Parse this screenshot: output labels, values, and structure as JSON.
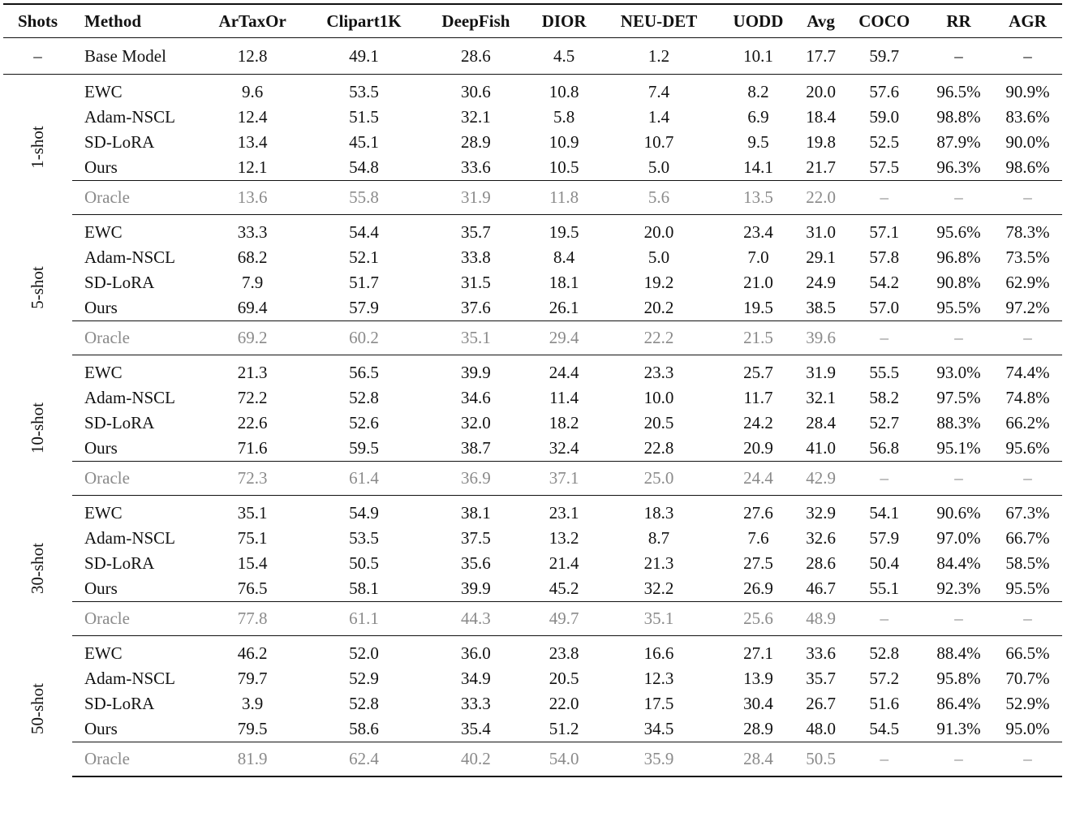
{
  "columns": [
    "Shots",
    "Method",
    "ArTaxOr",
    "Clipart1K",
    "DeepFish",
    "DIOR",
    "NEU-DET",
    "UODD",
    "Avg",
    "COCO",
    "RR",
    "AGR"
  ],
  "base": {
    "shots": "–",
    "method": "Base Model",
    "values": [
      "12.8",
      "49.1",
      "28.6",
      "4.5",
      "1.2",
      "10.1",
      "17.7",
      "59.7",
      "–",
      "–"
    ]
  },
  "groups": [
    {
      "shots": "1-shot",
      "rows": [
        {
          "method": "EWC",
          "values": [
            "9.6",
            "53.5",
            "30.6",
            "10.8",
            "7.4",
            "8.2",
            "20.0",
            "57.6",
            "96.5%",
            "90.9%"
          ]
        },
        {
          "method": "Adam-NSCL",
          "values": [
            "12.4",
            "51.5",
            "32.1",
            "5.8",
            "1.4",
            "6.9",
            "18.4",
            "59.0",
            "98.8%",
            "83.6%"
          ]
        },
        {
          "method": "SD-LoRA",
          "values": [
            "13.4",
            "45.1",
            "28.9",
            "10.9",
            "10.7",
            "9.5",
            "19.8",
            "52.5",
            "87.9%",
            "90.0%"
          ]
        },
        {
          "method": "Ours",
          "values": [
            "12.1",
            "54.8",
            "33.6",
            "10.5",
            "5.0",
            "14.1",
            "21.7",
            "57.5",
            "96.3%",
            "98.6%"
          ]
        }
      ],
      "oracle": {
        "method": "Oracle",
        "values": [
          "13.6",
          "55.8",
          "31.9",
          "11.8",
          "5.6",
          "13.5",
          "22.0",
          "–",
          "–",
          "–"
        ]
      }
    },
    {
      "shots": "5-shot",
      "rows": [
        {
          "method": "EWC",
          "values": [
            "33.3",
            "54.4",
            "35.7",
            "19.5",
            "20.0",
            "23.4",
            "31.0",
            "57.1",
            "95.6%",
            "78.3%"
          ]
        },
        {
          "method": "Adam-NSCL",
          "values": [
            "68.2",
            "52.1",
            "33.8",
            "8.4",
            "5.0",
            "7.0",
            "29.1",
            "57.8",
            "96.8%",
            "73.5%"
          ]
        },
        {
          "method": "SD-LoRA",
          "values": [
            "7.9",
            "51.7",
            "31.5",
            "18.1",
            "19.2",
            "21.0",
            "24.9",
            "54.2",
            "90.8%",
            "62.9%"
          ]
        },
        {
          "method": "Ours",
          "values": [
            "69.4",
            "57.9",
            "37.6",
            "26.1",
            "20.2",
            "19.5",
            "38.5",
            "57.0",
            "95.5%",
            "97.2%"
          ]
        }
      ],
      "oracle": {
        "method": "Oracle",
        "values": [
          "69.2",
          "60.2",
          "35.1",
          "29.4",
          "22.2",
          "21.5",
          "39.6",
          "–",
          "–",
          "–"
        ]
      }
    },
    {
      "shots": "10-shot",
      "rows": [
        {
          "method": "EWC",
          "values": [
            "21.3",
            "56.5",
            "39.9",
            "24.4",
            "23.3",
            "25.7",
            "31.9",
            "55.5",
            "93.0%",
            "74.4%"
          ]
        },
        {
          "method": "Adam-NSCL",
          "values": [
            "72.2",
            "52.8",
            "34.6",
            "11.4",
            "10.0",
            "11.7",
            "32.1",
            "58.2",
            "97.5%",
            "74.8%"
          ]
        },
        {
          "method": "SD-LoRA",
          "values": [
            "22.6",
            "52.6",
            "32.0",
            "18.2",
            "20.5",
            "24.2",
            "28.4",
            "52.7",
            "88.3%",
            "66.2%"
          ]
        },
        {
          "method": "Ours",
          "values": [
            "71.6",
            "59.5",
            "38.7",
            "32.4",
            "22.8",
            "20.9",
            "41.0",
            "56.8",
            "95.1%",
            "95.6%"
          ]
        }
      ],
      "oracle": {
        "method": "Oracle",
        "values": [
          "72.3",
          "61.4",
          "36.9",
          "37.1",
          "25.0",
          "24.4",
          "42.9",
          "–",
          "–",
          "–"
        ]
      }
    },
    {
      "shots": "30-shot",
      "rows": [
        {
          "method": "EWC",
          "values": [
            "35.1",
            "54.9",
            "38.1",
            "23.1",
            "18.3",
            "27.6",
            "32.9",
            "54.1",
            "90.6%",
            "67.3%"
          ]
        },
        {
          "method": "Adam-NSCL",
          "values": [
            "75.1",
            "53.5",
            "37.5",
            "13.2",
            "8.7",
            "7.6",
            "32.6",
            "57.9",
            "97.0%",
            "66.7%"
          ]
        },
        {
          "method": "SD-LoRA",
          "values": [
            "15.4",
            "50.5",
            "35.6",
            "21.4",
            "21.3",
            "27.5",
            "28.6",
            "50.4",
            "84.4%",
            "58.5%"
          ]
        },
        {
          "method": "Ours",
          "values": [
            "76.5",
            "58.1",
            "39.9",
            "45.2",
            "32.2",
            "26.9",
            "46.7",
            "55.1",
            "92.3%",
            "95.5%"
          ]
        }
      ],
      "oracle": {
        "method": "Oracle",
        "values": [
          "77.8",
          "61.1",
          "44.3",
          "49.7",
          "35.1",
          "25.6",
          "48.9",
          "–",
          "–",
          "–"
        ]
      }
    },
    {
      "shots": "50-shot",
      "rows": [
        {
          "method": "EWC",
          "values": [
            "46.2",
            "52.0",
            "36.0",
            "23.8",
            "16.6",
            "27.1",
            "33.6",
            "52.8",
            "88.4%",
            "66.5%"
          ]
        },
        {
          "method": "Adam-NSCL",
          "values": [
            "79.7",
            "52.9",
            "34.9",
            "20.5",
            "12.3",
            "13.9",
            "35.7",
            "57.2",
            "95.8%",
            "70.7%"
          ]
        },
        {
          "method": "SD-LoRA",
          "values": [
            "3.9",
            "52.8",
            "33.3",
            "22.0",
            "17.5",
            "30.4",
            "26.7",
            "51.6",
            "86.4%",
            "52.9%"
          ]
        },
        {
          "method": "Ours",
          "values": [
            "79.5",
            "58.6",
            "35.4",
            "51.2",
            "34.5",
            "28.9",
            "48.0",
            "54.5",
            "91.3%",
            "95.0%"
          ]
        }
      ],
      "oracle": {
        "method": "Oracle",
        "values": [
          "81.9",
          "62.4",
          "40.2",
          "54.0",
          "35.9",
          "28.4",
          "50.5",
          "–",
          "–",
          "–"
        ]
      }
    }
  ]
}
